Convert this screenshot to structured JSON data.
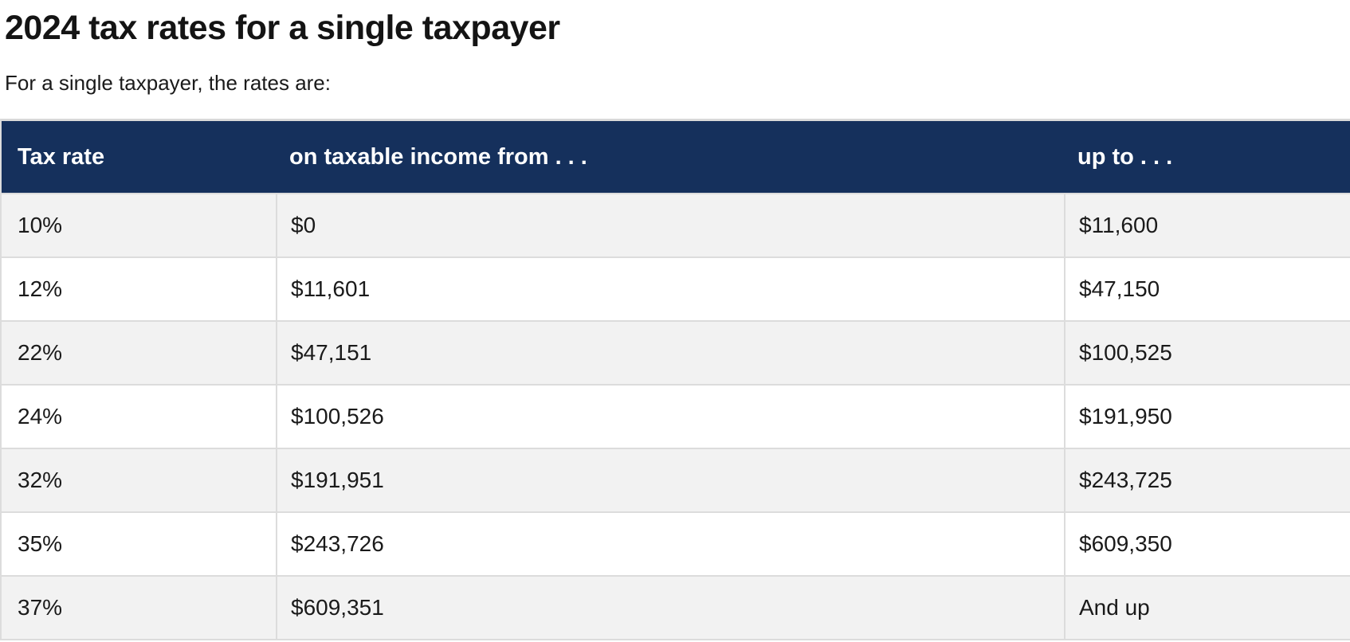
{
  "page": {
    "title": "2024 tax rates for a single taxpayer",
    "subtitle": "For a single taxpayer, the rates are:"
  },
  "table": {
    "columns": [
      "Tax rate",
      "on taxable income from . . .",
      "up to . . ."
    ],
    "rows": [
      [
        "10%",
        "$0",
        "$11,600"
      ],
      [
        "12%",
        "$11,601",
        "$47,150"
      ],
      [
        "22%",
        "$47,151",
        "$100,525"
      ],
      [
        "24%",
        "$100,526",
        "$191,950"
      ],
      [
        "32%",
        "$191,951",
        "$243,725"
      ],
      [
        "35%",
        "$243,726",
        "$609,350"
      ],
      [
        "37%",
        "$609,351",
        "And up"
      ]
    ]
  },
  "colors": {
    "header_background": "#15305c",
    "header_text": "#ffffff",
    "row_stripe": "#f2f2f2",
    "row_alt": "#ffffff",
    "border": "#dcdcdc",
    "body_text": "#1a1a1a",
    "title_text": "#141414"
  },
  "chart_data": {
    "type": "table",
    "title": "2024 tax rates for a single taxpayer",
    "columns": [
      "Tax rate",
      "on taxable income from . . .",
      "up to . . ."
    ],
    "rows": [
      [
        "10%",
        "$0",
        "$11,600"
      ],
      [
        "12%",
        "$11,601",
        "$47,150"
      ],
      [
        "22%",
        "$47,151",
        "$100,525"
      ],
      [
        "24%",
        "$100,526",
        "$191,950"
      ],
      [
        "32%",
        "$191,951",
        "$243,725"
      ],
      [
        "35%",
        "$243,726",
        "$609,350"
      ],
      [
        "37%",
        "$609,351",
        "And up"
      ]
    ]
  }
}
